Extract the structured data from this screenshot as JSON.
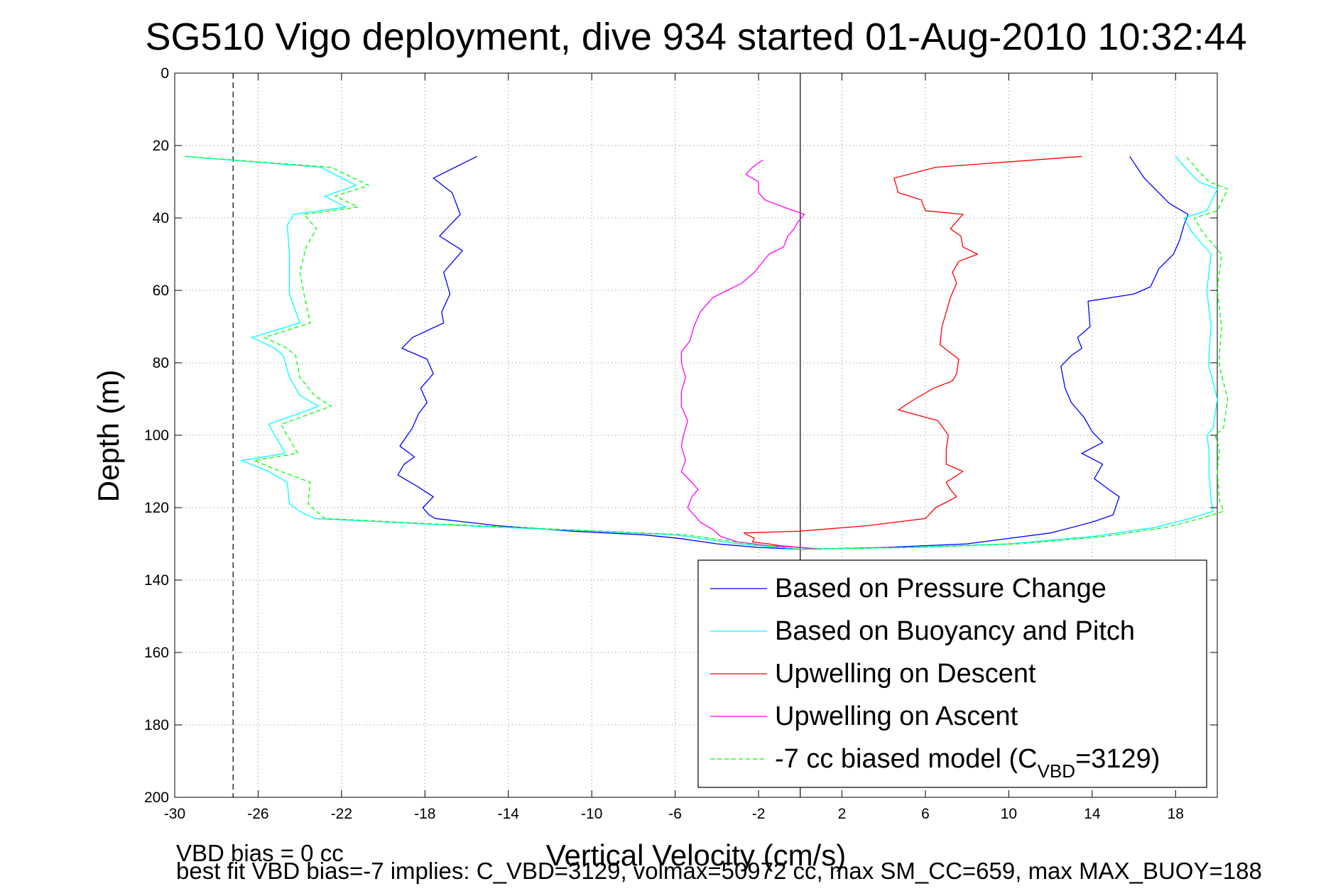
{
  "chart_data": {
    "type": "line",
    "title": "SG510 Vigo deployment, dive 934 started 01-Aug-2010 10:32:44",
    "xlabel": "Vertical Velocity (cm/s)",
    "ylabel": "Depth (m)",
    "xlim": [
      -30,
      20
    ],
    "ylim": [
      0,
      200
    ],
    "y_reversed": true,
    "grid": true,
    "legend_position": "bottom-right",
    "xticks": [
      "-30",
      "-26",
      "-22",
      "-18",
      "-14",
      "-10",
      "-6",
      "-2",
      "2",
      "6",
      "10",
      "14",
      "18"
    ],
    "yticks": [
      "0",
      "20",
      "40",
      "60",
      "80",
      "100",
      "120",
      "140",
      "160",
      "180",
      "200"
    ],
    "xtick_values": [
      -30,
      -26,
      -22,
      -18,
      -14,
      -10,
      -6,
      -2,
      2,
      6,
      10,
      14,
      18
    ],
    "ytick_values": [
      0,
      20,
      40,
      60,
      80,
      100,
      120,
      140,
      160,
      180,
      200
    ],
    "reference_lines": [
      {
        "x": 0,
        "style": "solid",
        "color": "#000000"
      },
      {
        "x": -27.2,
        "style": "dashed",
        "color": "#000000"
      }
    ],
    "series": [
      {
        "name": "Based on Pressure Change",
        "color": "#0000ff",
        "dash": "solid",
        "points": [
          [
            -15.5,
            23
          ],
          [
            -17.6,
            29
          ],
          [
            -16.7,
            33
          ],
          [
            -16.3,
            39
          ],
          [
            -17.3,
            45
          ],
          [
            -16.2,
            49
          ],
          [
            -17.1,
            55
          ],
          [
            -16.8,
            61
          ],
          [
            -17.2,
            66
          ],
          [
            -17.1,
            69
          ],
          [
            -18.6,
            73
          ],
          [
            -19.1,
            76
          ],
          [
            -17.9,
            79
          ],
          [
            -17.6,
            83
          ],
          [
            -18.2,
            87
          ],
          [
            -17.9,
            91
          ],
          [
            -18.3,
            94
          ],
          [
            -18.6,
            98
          ],
          [
            -19.2,
            103
          ],
          [
            -18.5,
            106
          ],
          [
            -19.0,
            108
          ],
          [
            -19.3,
            111
          ],
          [
            -18.4,
            114
          ],
          [
            -17.6,
            117
          ],
          [
            -18.1,
            120
          ],
          [
            -17.8,
            122
          ],
          [
            -17.5,
            123
          ],
          [
            -14.5,
            125
          ],
          [
            -11.0,
            126.5
          ],
          [
            -7.5,
            127.5
          ],
          [
            -5.8,
            128.5
          ],
          [
            -4.0,
            130
          ],
          [
            -2.0,
            131
          ],
          [
            0,
            131.5
          ],
          [
            4.0,
            131
          ],
          [
            8.0,
            130
          ],
          [
            12.0,
            127
          ],
          [
            14.0,
            124
          ],
          [
            15.0,
            122
          ],
          [
            15.3,
            117
          ],
          [
            14.8,
            115
          ],
          [
            14.1,
            112
          ],
          [
            14.5,
            108
          ],
          [
            13.5,
            105
          ],
          [
            14.5,
            102
          ],
          [
            14.0,
            99
          ],
          [
            13.6,
            95
          ],
          [
            13.0,
            91
          ],
          [
            12.7,
            87
          ],
          [
            12.5,
            81
          ],
          [
            13.0,
            78
          ],
          [
            13.5,
            76
          ],
          [
            13.3,
            73
          ],
          [
            13.9,
            70
          ],
          [
            13.8,
            63
          ],
          [
            16.0,
            61
          ],
          [
            16.8,
            59
          ],
          [
            17.2,
            54
          ],
          [
            17.9,
            50
          ],
          [
            18.2,
            46
          ],
          [
            18.4,
            42
          ],
          [
            18.6,
            39
          ],
          [
            17.7,
            36
          ],
          [
            16.5,
            29
          ],
          [
            15.8,
            23
          ]
        ]
      },
      {
        "name": "Based on Buoyancy and Pitch",
        "color": "#00ffff",
        "dash": "solid",
        "points": [
          [
            -29.5,
            23
          ],
          [
            -23.0,
            26
          ],
          [
            -21.3,
            31
          ],
          [
            -22.8,
            34
          ],
          [
            -21.8,
            37
          ],
          [
            -24.3,
            39
          ],
          [
            -24.6,
            42
          ],
          [
            -24.5,
            50
          ],
          [
            -24.5,
            61
          ],
          [
            -24.0,
            69
          ],
          [
            -26.3,
            73
          ],
          [
            -25.2,
            76
          ],
          [
            -24.8,
            78
          ],
          [
            -24.5,
            84
          ],
          [
            -24.0,
            89
          ],
          [
            -23.1,
            92
          ],
          [
            -25.5,
            97
          ],
          [
            -25.2,
            100
          ],
          [
            -24.7,
            105
          ],
          [
            -26.8,
            107
          ],
          [
            -25.5,
            110
          ],
          [
            -24.6,
            113
          ],
          [
            -24.5,
            119
          ],
          [
            -24.0,
            121
          ],
          [
            -23.3,
            123
          ],
          [
            -18.0,
            124.5
          ],
          [
            -12.0,
            126
          ],
          [
            -6.0,
            127.5
          ],
          [
            -3.0,
            130
          ],
          [
            0,
            131.5
          ],
          [
            5.0,
            131
          ],
          [
            10.0,
            130
          ],
          [
            14.0,
            128
          ],
          [
            17.0,
            125.5
          ],
          [
            18.7,
            123
          ],
          [
            19.8,
            121
          ],
          [
            19.7,
            118
          ],
          [
            19.6,
            110
          ],
          [
            19.6,
            104
          ],
          [
            19.5,
            100
          ],
          [
            19.8,
            98
          ],
          [
            20.0,
            90
          ],
          [
            19.6,
            81
          ],
          [
            19.6,
            78
          ],
          [
            19.7,
            70
          ],
          [
            19.5,
            60
          ],
          [
            19.7,
            50
          ],
          [
            18.8,
            44
          ],
          [
            18.4,
            40
          ],
          [
            19.5,
            38
          ],
          [
            20.0,
            32
          ],
          [
            19.1,
            30
          ],
          [
            18.6,
            27
          ],
          [
            18.0,
            23
          ]
        ]
      },
      {
        "name": "Upwelling on Descent",
        "color": "#ff0000",
        "dash": "solid",
        "points": [
          [
            13.5,
            23
          ],
          [
            6.5,
            26
          ],
          [
            4.5,
            29
          ],
          [
            4.7,
            33
          ],
          [
            5.8,
            35
          ],
          [
            6.0,
            38
          ],
          [
            7.8,
            39
          ],
          [
            7.5,
            41
          ],
          [
            7.2,
            43
          ],
          [
            7.7,
            45
          ],
          [
            7.8,
            48
          ],
          [
            8.5,
            50
          ],
          [
            7.6,
            52
          ],
          [
            7.3,
            55
          ],
          [
            7.5,
            58
          ],
          [
            7.2,
            62
          ],
          [
            7.0,
            66
          ],
          [
            6.8,
            70
          ],
          [
            6.7,
            75
          ],
          [
            7.6,
            79
          ],
          [
            7.5,
            83
          ],
          [
            7.3,
            85
          ],
          [
            6.4,
            87
          ],
          [
            5.5,
            90
          ],
          [
            4.7,
            93
          ],
          [
            6.6,
            96
          ],
          [
            7.1,
            100
          ],
          [
            7.0,
            104
          ],
          [
            7.0,
            108
          ],
          [
            7.8,
            110
          ],
          [
            7.0,
            113
          ],
          [
            7.2,
            115
          ],
          [
            7.5,
            117
          ],
          [
            6.5,
            120
          ],
          [
            6.0,
            123
          ],
          [
            3.2,
            125
          ],
          [
            0,
            126.5
          ],
          [
            -2.7,
            127
          ],
          [
            -2.2,
            128.5
          ],
          [
            -2.3,
            129.5
          ],
          [
            -1.5,
            130
          ],
          [
            -1.0,
            130.5
          ],
          [
            0,
            131
          ],
          [
            1.0,
            131.5
          ]
        ]
      },
      {
        "name": "Upwelling on Ascent",
        "color": "#ff00ff",
        "dash": "solid",
        "points": [
          [
            1.0,
            131.5
          ],
          [
            0,
            131
          ],
          [
            -1.5,
            130.5
          ],
          [
            -3.0,
            129.5
          ],
          [
            -3.8,
            128
          ],
          [
            -4.2,
            126
          ],
          [
            -4.8,
            124
          ],
          [
            -5.4,
            120
          ],
          [
            -5.2,
            117
          ],
          [
            -4.9,
            115
          ],
          [
            -5.2,
            113
          ],
          [
            -5.7,
            110
          ],
          [
            -5.5,
            107
          ],
          [
            -5.7,
            103
          ],
          [
            -5.6,
            100
          ],
          [
            -5.4,
            96
          ],
          [
            -5.7,
            92
          ],
          [
            -5.7,
            88
          ],
          [
            -5.5,
            84
          ],
          [
            -5.7,
            80
          ],
          [
            -5.7,
            77
          ],
          [
            -5.3,
            74
          ],
          [
            -5.1,
            70
          ],
          [
            -4.8,
            66
          ],
          [
            -4.2,
            62
          ],
          [
            -3.5,
            60
          ],
          [
            -2.8,
            58
          ],
          [
            -2.2,
            55
          ],
          [
            -1.5,
            50
          ],
          [
            -0.8,
            48
          ],
          [
            -0.6,
            45
          ],
          [
            -0.3,
            43
          ],
          [
            -0.1,
            41
          ],
          [
            0.2,
            39
          ],
          [
            -0.8,
            37
          ],
          [
            -1.7,
            35
          ],
          [
            -2.0,
            33
          ],
          [
            -2.0,
            30
          ],
          [
            -2.6,
            28
          ],
          [
            -2.3,
            26
          ],
          [
            -1.8,
            24
          ]
        ]
      },
      {
        "name": "-7 cc biased model (C",
        "name_sub": "VBD",
        "name_suffix": "=3129)",
        "color": "#00ff00",
        "dash": "dashed",
        "points": [
          [
            -29.5,
            23
          ],
          [
            -22.5,
            26
          ],
          [
            -20.7,
            31
          ],
          [
            -22.3,
            34
          ],
          [
            -21.2,
            37
          ],
          [
            -23.8,
            39
          ],
          [
            -23.2,
            43
          ],
          [
            -23.7,
            48
          ],
          [
            -24.0,
            55
          ],
          [
            -23.8,
            61
          ],
          [
            -23.5,
            69
          ],
          [
            -25.7,
            73
          ],
          [
            -24.6,
            76
          ],
          [
            -24.2,
            78
          ],
          [
            -24.0,
            84
          ],
          [
            -23.3,
            89
          ],
          [
            -22.5,
            92
          ],
          [
            -24.9,
            97
          ],
          [
            -24.6,
            100
          ],
          [
            -24.1,
            105
          ],
          [
            -26.2,
            107
          ],
          [
            -24.9,
            110
          ],
          [
            -23.5,
            113
          ],
          [
            -23.6,
            119
          ],
          [
            -23.2,
            121
          ],
          [
            -22.8,
            123
          ],
          [
            -17.5,
            124.5
          ],
          [
            -11.5,
            126
          ],
          [
            -5.5,
            127.5
          ],
          [
            -2.5,
            130
          ],
          [
            0,
            131.5
          ],
          [
            5.5,
            131
          ],
          [
            10.5,
            130
          ],
          [
            14.5,
            128
          ],
          [
            17.5,
            125.5
          ],
          [
            19.2,
            123
          ],
          [
            20.3,
            121
          ],
          [
            20.1,
            118
          ],
          [
            20.0,
            110
          ],
          [
            20.1,
            104
          ],
          [
            19.9,
            100
          ],
          [
            20.3,
            98
          ],
          [
            20.5,
            90
          ],
          [
            20.1,
            81
          ],
          [
            20.1,
            78
          ],
          [
            20.2,
            70
          ],
          [
            20.0,
            60
          ],
          [
            20.2,
            50
          ],
          [
            19.3,
            44
          ],
          [
            18.9,
            40
          ],
          [
            20.0,
            38
          ],
          [
            20.5,
            32
          ],
          [
            19.6,
            30
          ],
          [
            19.1,
            27
          ],
          [
            18.5,
            23
          ]
        ]
      }
    ],
    "footnotes": [
      "VBD bias = 0 cc",
      "best fit VBD bias=-7 implies: C_VBD=3129, volmax=50972 cc, max SM_CC=659, max MAX_BUOY=188"
    ]
  }
}
